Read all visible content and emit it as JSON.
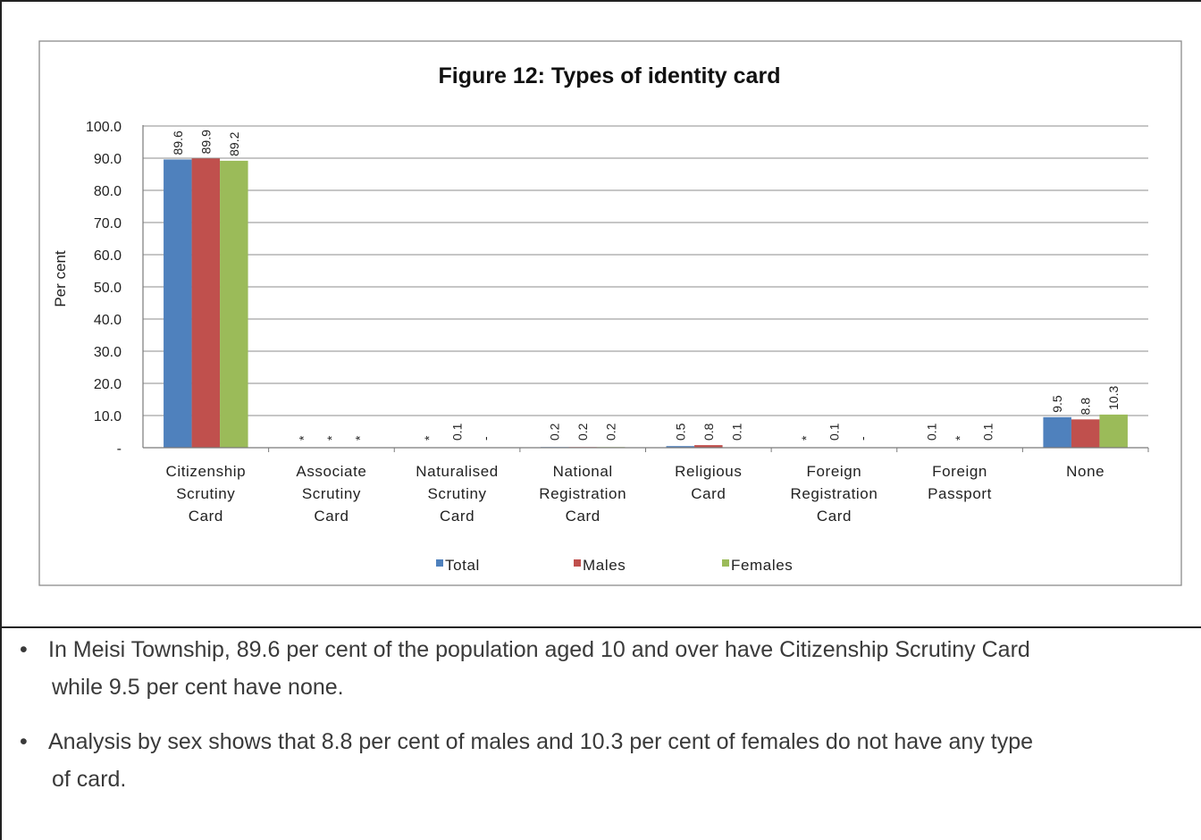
{
  "chart_data": {
    "type": "bar",
    "title": "Figure 12:  Types of identity card",
    "xlabel": "",
    "ylabel": "Per cent",
    "ylim": [
      0,
      100
    ],
    "ytick_values": [
      0,
      10,
      20,
      30,
      40,
      50,
      60,
      70,
      80,
      90,
      100
    ],
    "ytick_labels": [
      "-",
      "10.0",
      "20.0",
      "30.0",
      "40.0",
      "50.0",
      "60.0",
      "70.0",
      "80.0",
      "90.0",
      "100.0"
    ],
    "grid": true,
    "legend_position": "bottom",
    "categories": [
      [
        "Citizenship",
        "Scrutiny",
        "Card"
      ],
      [
        "Associate",
        "Scrutiny",
        "Card"
      ],
      [
        "Naturalised",
        "Scrutiny",
        "Card"
      ],
      [
        "National",
        "Registration",
        "Card"
      ],
      [
        "Religious",
        "Card"
      ],
      [
        "Foreign",
        "Registration",
        "Card"
      ],
      [
        "Foreign",
        "Passport"
      ],
      [
        "None"
      ]
    ],
    "series": [
      {
        "name": "Total",
        "color": "#4f81bd",
        "values": [
          89.6,
          0.05,
          0.05,
          0.2,
          0.5,
          0.05,
          0.1,
          9.5
        ],
        "labels": [
          "89.6",
          "*",
          "*",
          "0.2",
          "0.5",
          "*",
          "0.1",
          "9.5"
        ]
      },
      {
        "name": "Males",
        "color": "#c0504d",
        "values": [
          89.9,
          0.05,
          0.1,
          0.2,
          0.8,
          0.1,
          0.05,
          8.8
        ],
        "labels": [
          "89.9",
          "*",
          "0.1",
          "0.2",
          "0.8",
          "0.1",
          "*",
          "8.8"
        ]
      },
      {
        "name": "Females",
        "color": "#9bbb59",
        "values": [
          89.2,
          0.05,
          0,
          0.2,
          0.1,
          0,
          0.1,
          10.3
        ],
        "labels": [
          "89.2",
          "*",
          "-",
          "0.2",
          "0.1",
          "-",
          "0.1",
          "10.3"
        ]
      }
    ]
  },
  "bullets": [
    {
      "line1": "In Meisi Township, 89.6 per cent of the population aged 10 and over have Citizenship Scrutiny Card",
      "line2": "while 9.5 per cent have none."
    },
    {
      "line1": "Analysis by sex shows that 8.8 per cent of males and 10.3 per cent of females do not have any type",
      "line2": "of card."
    }
  ],
  "bullet_symbol": "•"
}
